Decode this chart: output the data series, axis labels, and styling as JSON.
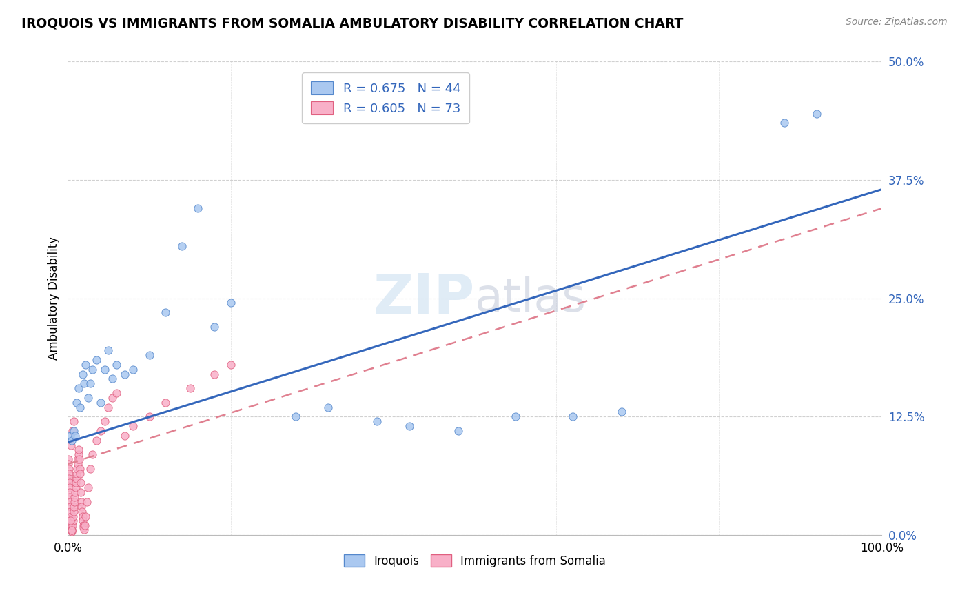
{
  "title": "IROQUOIS VS IMMIGRANTS FROM SOMALIA AMBULATORY DISABILITY CORRELATION CHART",
  "source": "Source: ZipAtlas.com",
  "ylabel": "Ambulatory Disability",
  "yticks": [
    "0.0%",
    "12.5%",
    "25.0%",
    "37.5%",
    "50.0%"
  ],
  "ytick_vals": [
    0.0,
    12.5,
    25.0,
    37.5,
    50.0
  ],
  "xlim": [
    0,
    100
  ],
  "ylim": [
    0,
    50
  ],
  "iroquois_color": "#aac8f0",
  "somalia_color": "#f8b0c8",
  "iroquois_edge": "#5588cc",
  "somalia_edge": "#e06080",
  "line1_color": "#3366bb",
  "line2_color": "#e08090",
  "blue_text": "#3366bb",
  "iroquois_x": [
    0.3,
    0.5,
    0.7,
    0.9,
    1.1,
    1.3,
    1.5,
    1.8,
    2.0,
    2.2,
    2.5,
    2.8,
    3.0,
    3.5,
    4.0,
    4.5,
    5.0,
    5.5,
    6.0,
    7.0,
    8.0,
    10.0,
    12.0,
    14.0,
    16.0,
    18.0,
    20.0,
    28.0,
    32.0,
    38.0,
    42.0,
    48.0,
    55.0,
    62.0,
    68.0,
    88.0,
    92.0
  ],
  "iroquois_y": [
    10.5,
    10.0,
    11.0,
    10.5,
    14.0,
    15.5,
    13.5,
    17.0,
    16.0,
    18.0,
    14.5,
    16.0,
    17.5,
    18.5,
    14.0,
    17.5,
    19.5,
    16.5,
    18.0,
    17.0,
    17.5,
    19.0,
    23.5,
    30.5,
    34.5,
    22.0,
    24.5,
    12.5,
    13.5,
    12.0,
    11.5,
    11.0,
    12.5,
    12.5,
    13.0,
    43.5,
    44.5
  ],
  "somalia_x": [
    0.05,
    0.08,
    0.1,
    0.12,
    0.15,
    0.18,
    0.2,
    0.22,
    0.25,
    0.28,
    0.3,
    0.33,
    0.35,
    0.38,
    0.4,
    0.42,
    0.45,
    0.48,
    0.5,
    0.55,
    0.6,
    0.65,
    0.7,
    0.75,
    0.8,
    0.85,
    0.9,
    0.95,
    1.0,
    1.05,
    1.1,
    1.15,
    1.2,
    1.25,
    1.3,
    1.35,
    1.4,
    1.45,
    1.5,
    1.55,
    1.6,
    1.65,
    1.7,
    1.75,
    1.8,
    1.85,
    1.9,
    1.95,
    2.0,
    2.1,
    2.2,
    2.3,
    2.5,
    2.8,
    3.0,
    3.5,
    4.0,
    4.5,
    5.0,
    5.5,
    6.0,
    7.0,
    8.0,
    10.0,
    12.0,
    15.0,
    18.0,
    20.0,
    0.35,
    0.55,
    0.75,
    0.5,
    0.3
  ],
  "somalia_y": [
    8.0,
    7.5,
    7.0,
    6.5,
    6.0,
    5.5,
    5.0,
    4.5,
    4.0,
    3.5,
    3.0,
    2.5,
    2.0,
    1.5,
    1.0,
    0.8,
    0.6,
    0.4,
    0.5,
    1.0,
    1.5,
    2.0,
    2.5,
    3.0,
    3.5,
    4.0,
    4.5,
    5.0,
    5.5,
    6.0,
    6.5,
    7.0,
    7.5,
    8.0,
    8.5,
    9.0,
    8.0,
    7.0,
    6.5,
    5.5,
    4.5,
    3.5,
    3.0,
    2.5,
    2.0,
    1.5,
    1.0,
    0.8,
    0.6,
    1.0,
    2.0,
    3.5,
    5.0,
    7.0,
    8.5,
    10.0,
    11.0,
    12.0,
    13.5,
    14.5,
    15.0,
    10.5,
    11.5,
    12.5,
    14.0,
    15.5,
    17.0,
    18.0,
    9.5,
    11.0,
    12.0,
    0.5,
    1.5
  ],
  "line1_x0": 0,
  "line1_y0": 9.8,
  "line1_x1": 100,
  "line1_y1": 36.5,
  "line2_x0": 0,
  "line2_y0": 7.5,
  "line2_x1": 100,
  "line2_y1": 34.5
}
